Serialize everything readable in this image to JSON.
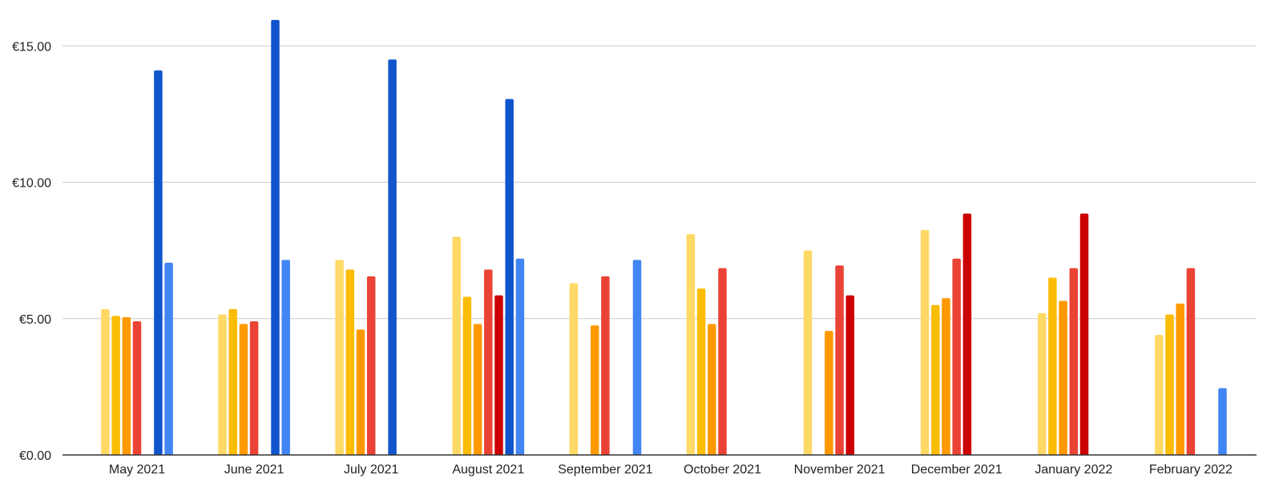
{
  "chart_data": {
    "type": "bar",
    "title": "",
    "xlabel": "",
    "ylabel": "",
    "ylim": [
      0,
      16
    ],
    "y_ticks": [
      0,
      5,
      10,
      15
    ],
    "y_tick_labels": [
      "€0.00",
      "€5.00",
      "€10.00",
      "€15.00"
    ],
    "grid": true,
    "legend": "none",
    "categories": [
      "May 2021",
      "June 2021",
      "July 2021",
      "August 2021",
      "September 2021",
      "October 2021",
      "November 2021",
      "December 2021",
      "January 2022",
      "February 2022"
    ],
    "series": [
      {
        "color": "#ffd966",
        "values": [
          5.35,
          5.15,
          7.15,
          8.0,
          6.3,
          8.1,
          7.5,
          8.25,
          5.2,
          4.4
        ]
      },
      {
        "color": "#fbbc04",
        "values": [
          5.1,
          5.35,
          6.8,
          5.8,
          null,
          6.1,
          null,
          5.5,
          6.5,
          5.15
        ]
      },
      {
        "color": "#ff9900",
        "values": [
          5.05,
          4.8,
          4.6,
          4.8,
          4.75,
          4.8,
          4.55,
          5.75,
          5.65,
          5.55
        ]
      },
      {
        "color": "#ea4335",
        "values": [
          4.9,
          4.9,
          6.55,
          6.8,
          6.55,
          6.85,
          6.95,
          7.2,
          6.85,
          6.85
        ]
      },
      {
        "color": "#cc0000",
        "values": [
          null,
          null,
          null,
          5.85,
          null,
          null,
          5.85,
          8.85,
          8.85,
          null
        ]
      },
      {
        "color": "#1155cc",
        "values": [
          14.1,
          15.95,
          14.5,
          13.05,
          null,
          null,
          null,
          null,
          null,
          null
        ]
      },
      {
        "color": "#4285f4",
        "values": [
          7.05,
          7.15,
          null,
          7.2,
          7.15,
          null,
          null,
          null,
          null,
          2.45
        ]
      }
    ]
  }
}
